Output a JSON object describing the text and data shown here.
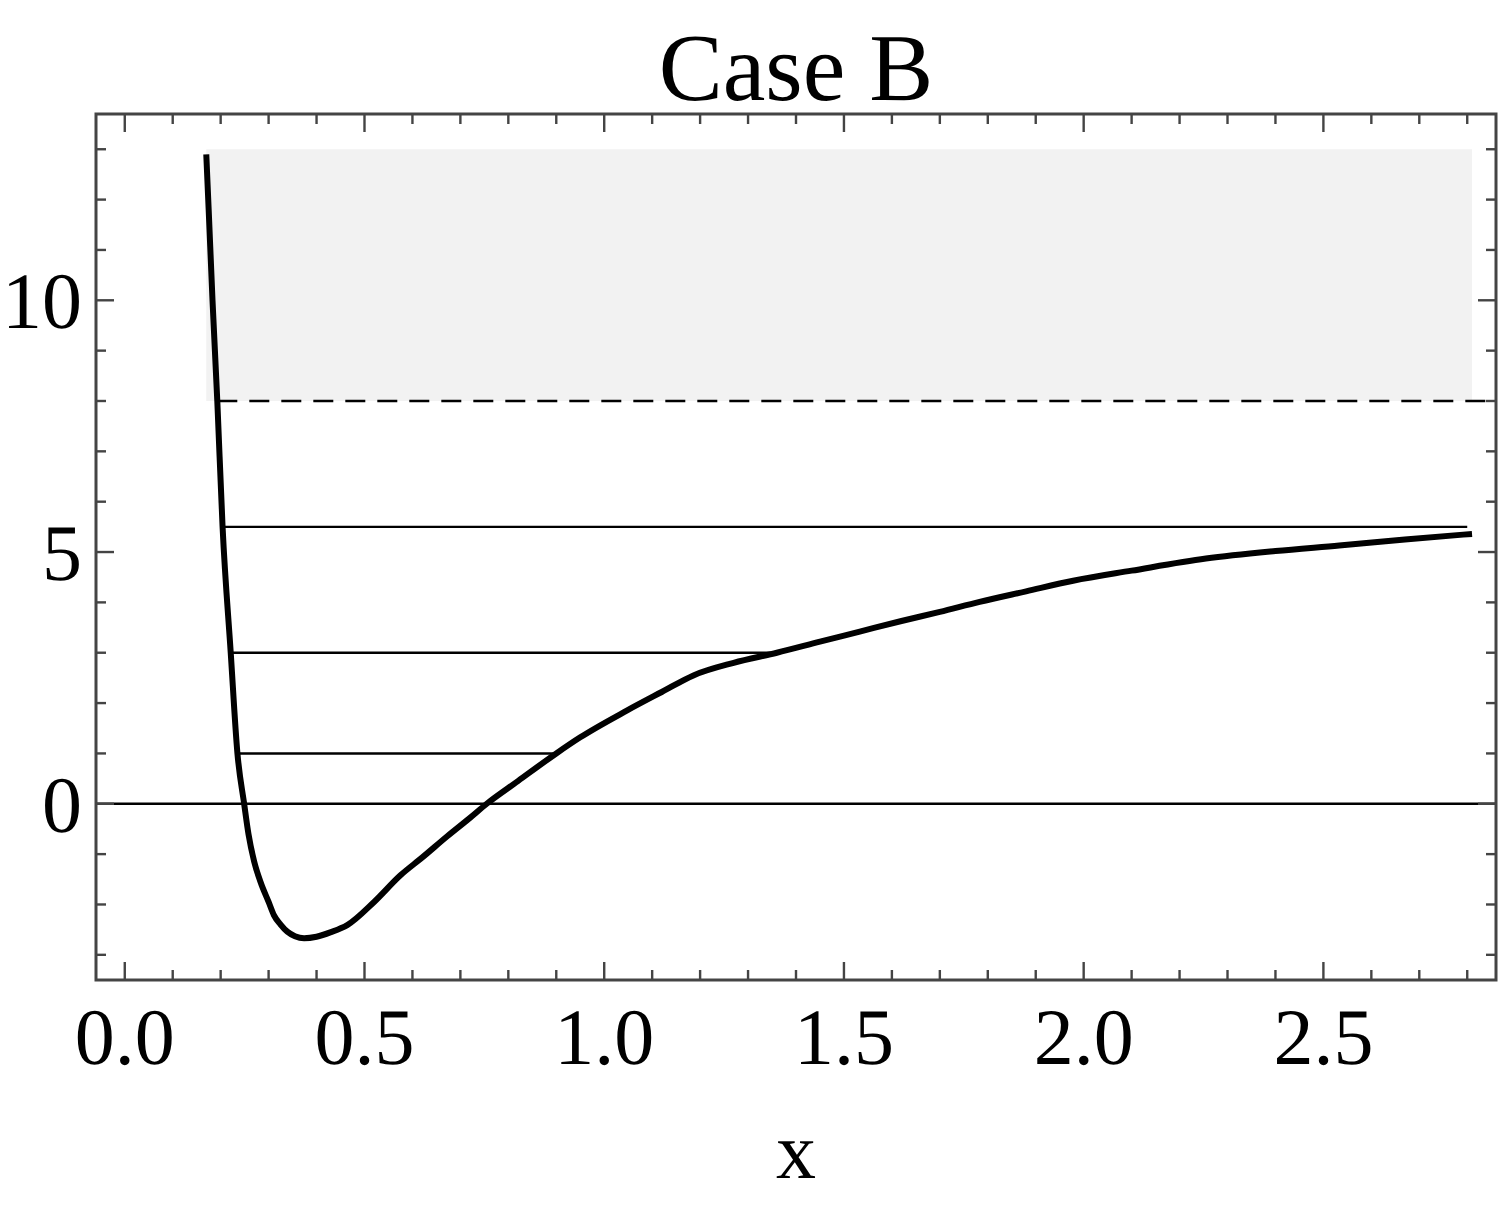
{
  "chart_data": {
    "type": "line",
    "title": "Case B",
    "xlabel": "x",
    "xlim": [
      -0.06,
      2.86
    ],
    "ylim": [
      -3.5,
      13.7
    ],
    "xticks": [
      {
        "value": 0,
        "label": "0.0"
      },
      {
        "value": 0.1,
        "label": null
      },
      {
        "value": 0.2,
        "label": null
      },
      {
        "value": 0.3,
        "label": null
      },
      {
        "value": 0.4,
        "label": null
      },
      {
        "value": 0.5,
        "label": "0.5"
      },
      {
        "value": 0.6,
        "label": null
      },
      {
        "value": 0.7,
        "label": null
      },
      {
        "value": 0.8,
        "label": null
      },
      {
        "value": 0.9,
        "label": null
      },
      {
        "value": 1,
        "label": "1.0"
      },
      {
        "value": 1.1,
        "label": null
      },
      {
        "value": 1.2,
        "label": null
      },
      {
        "value": 1.3,
        "label": null
      },
      {
        "value": 1.4,
        "label": null
      },
      {
        "value": 1.5,
        "label": "1.5"
      },
      {
        "value": 1.6,
        "label": null
      },
      {
        "value": 1.7,
        "label": null
      },
      {
        "value": 1.8,
        "label": null
      },
      {
        "value": 1.9,
        "label": null
      },
      {
        "value": 2,
        "label": "2.0"
      },
      {
        "value": 2.1,
        "label": null
      },
      {
        "value": 2.2,
        "label": null
      },
      {
        "value": 2.3,
        "label": null
      },
      {
        "value": 2.4,
        "label": null
      },
      {
        "value": 2.5,
        "label": "2.5"
      },
      {
        "value": 2.6,
        "label": null
      },
      {
        "value": 2.7,
        "label": null
      },
      {
        "value": 2.8,
        "label": null
      }
    ],
    "yticks": [
      {
        "value": -3,
        "label": null
      },
      {
        "value": -2,
        "label": null
      },
      {
        "value": -1,
        "label": null
      },
      0,
      {
        "value": 1,
        "label": null
      },
      {
        "value": 2,
        "label": null
      },
      {
        "value": 3,
        "label": null
      },
      {
        "value": 4,
        "label": null
      },
      5,
      {
        "value": 6,
        "label": null
      },
      {
        "value": 7,
        "label": null
      },
      {
        "value": 8,
        "label": null
      },
      {
        "value": 9,
        "label": null
      },
      10,
      {
        "value": 11,
        "label": null
      },
      {
        "value": 12,
        "label": null
      },
      {
        "value": 13,
        "label": null
      }
    ],
    "series": [
      {
        "color": "#000000",
        "x": [
          0.17,
          0.175,
          0.183,
          0.193,
          0.204,
          0.221,
          0.235,
          0.249,
          0.258,
          0.27,
          0.283,
          0.3,
          0.311,
          0.325,
          0.339,
          0.355,
          0.374,
          0.4,
          0.43,
          0.464,
          0.52,
          0.575,
          0.62,
          0.672,
          0.72,
          0.755,
          0.82,
          0.9,
          0.95,
          1.047,
          1.12,
          1.186,
          1.27,
          1.36,
          1.45,
          1.533,
          1.62,
          1.7,
          1.783,
          1.88,
          1.978,
          2.1,
          2.255,
          2.4,
          2.533,
          2.67,
          2.81
        ],
        "values": [
          12.9,
          11.8,
          10,
          8,
          5.5,
          3,
          1,
          0,
          -0.6,
          -1.15,
          -1.55,
          -1.95,
          -2.21,
          -2.4,
          -2.54,
          -2.63,
          -2.67,
          -2.64,
          -2.55,
          -2.41,
          -1.95,
          -1.42,
          -1.07,
          -0.65,
          -0.28,
          0,
          0.45,
          1,
          1.32,
          1.85,
          2.22,
          2.55,
          2.8,
          3,
          3.22,
          3.42,
          3.63,
          3.81,
          4.01,
          4.22,
          4.43,
          4.63,
          4.87,
          5.02,
          5.13,
          5.25,
          5.36
        ]
      },
      {
        "color": "#000000",
        "x": [
          0.204,
          2.8
        ],
        "values": [
          5.5,
          5.5
        ]
      },
      {
        "color": "#000000",
        "x": [
          0.221,
          1.36
        ],
        "values": [
          3,
          3
        ]
      },
      {
        "color": "#000000",
        "x": [
          0.235,
          0.9
        ],
        "values": [
          1,
          1
        ]
      },
      {
        "color": "#000000",
        "x": [
          0.193,
          2.86
        ],
        "values": [
          8,
          8
        ],
        "line_style": "dashed"
      }
    ],
    "ref_lines": [
      {
        "axis": "y",
        "value": 0,
        "color": "#000000"
      }
    ],
    "bands": [
      {
        "axis": "y",
        "from": 8,
        "to": 13,
        "color": "#f2f2f2"
      }
    ]
  }
}
